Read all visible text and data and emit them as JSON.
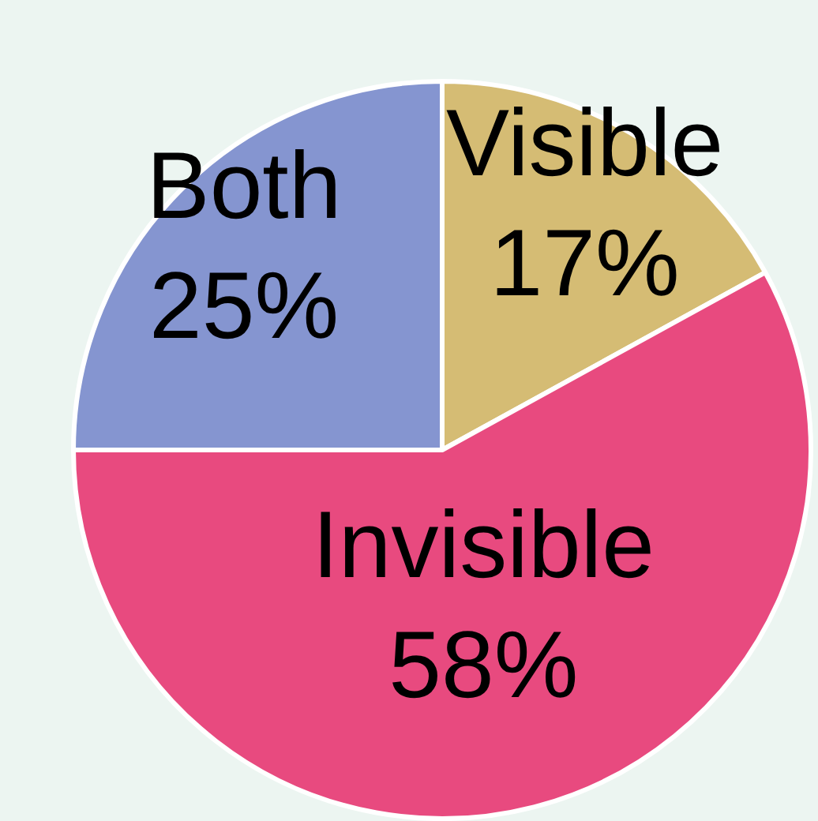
{
  "chart_data": {
    "type": "pie",
    "categories": [
      "Visible",
      "Invisible",
      "Both"
    ],
    "values": [
      17,
      58,
      25
    ],
    "colors": [
      "#d5bc74",
      "#e84a7f",
      "#8595d0"
    ],
    "value_labels": [
      "17%",
      "58%",
      "25%"
    ],
    "legend": false
  }
}
